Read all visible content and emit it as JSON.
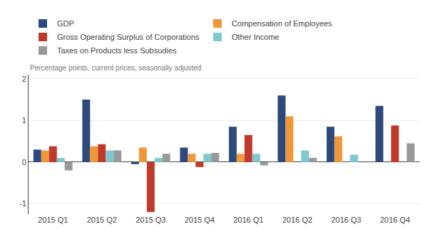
{
  "chart_data": {
    "type": "bar",
    "ylabel": "Percentage points, current prices, seasonally adjusted",
    "categories": [
      "2015 Q1",
      "2015 Q2",
      "2015 Q3",
      "2015 Q4",
      "2016 Q1",
      "2016 Q2",
      "2016 Q3",
      "2016 Q4"
    ],
    "series": [
      {
        "name": "GDP",
        "color": "#2e4a7d",
        "values": [
          0.3,
          1.5,
          -0.05,
          0.35,
          0.85,
          1.6,
          0.85,
          1.35
        ]
      },
      {
        "name": "Compensation of Employees",
        "color": "#f0973a",
        "values": [
          0.28,
          0.38,
          0.35,
          0.2,
          0.2,
          1.1,
          0.62,
          0.0
        ]
      },
      {
        "name": "Gross Operating Surplus of Corporations",
        "color": "#c0392b",
        "values": [
          0.38,
          0.43,
          -1.2,
          -0.12,
          0.65,
          0.0,
          0.0,
          0.88
        ]
      },
      {
        "name": "Other Income",
        "color": "#7ec8d0",
        "values": [
          0.1,
          0.28,
          0.1,
          0.2,
          0.2,
          0.28,
          0.18,
          0.0
        ]
      },
      {
        "name": "Taxes on Products less Subsudies",
        "color": "#999999",
        "values": [
          -0.2,
          0.28,
          0.2,
          0.22,
          -0.08,
          0.1,
          0.0,
          0.45
        ]
      }
    ],
    "ylim": [
      -1.25,
      2.1
    ],
    "yticks": [
      -1,
      0,
      1,
      2
    ],
    "grid": true,
    "legend": "top"
  }
}
